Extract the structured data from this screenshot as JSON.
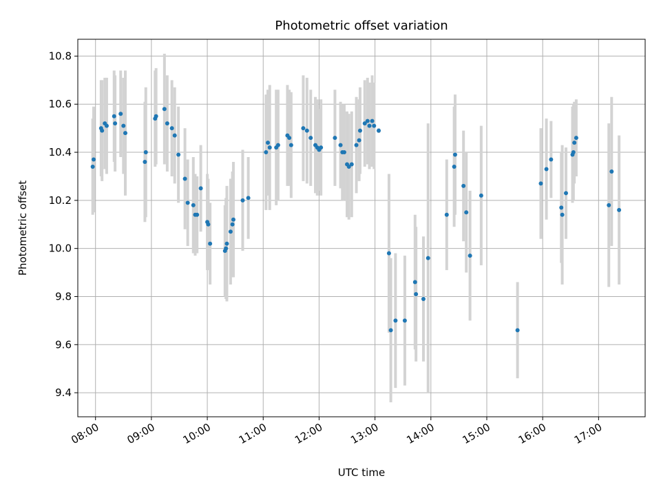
{
  "chart_data": {
    "type": "scatter",
    "title": "Photometric offset variation",
    "xlabel": "UTC time",
    "ylabel": "Photometric offset",
    "x_unit": "UTC time (HH:MM)",
    "xlim": [
      "07:41",
      "17:50"
    ],
    "ylim": [
      9.3,
      10.87
    ],
    "x_ticks": [
      "08:00",
      "09:00",
      "10:00",
      "11:00",
      "12:00",
      "13:00",
      "14:00",
      "15:00",
      "16:00",
      "17:00"
    ],
    "y_ticks": [
      9.4,
      9.6,
      9.8,
      10.0,
      10.2,
      10.4,
      10.6,
      10.8
    ],
    "grid": true,
    "colors": {
      "point": "#1f77b4",
      "errorbar": "#d3d3d3",
      "grid": "#b0b0b0"
    },
    "points": [
      {
        "x": "07:57",
        "y": 10.34,
        "err": 0.2
      },
      {
        "x": "07:58",
        "y": 10.37,
        "err": 0.22
      },
      {
        "x": "08:06",
        "y": 10.5,
        "err": 0.2
      },
      {
        "x": "08:07",
        "y": 10.49,
        "err": 0.21
      },
      {
        "x": "08:10",
        "y": 10.52,
        "err": 0.19
      },
      {
        "x": "08:12",
        "y": 10.51,
        "err": 0.2
      },
      {
        "x": "08:20",
        "y": 10.55,
        "err": 0.19
      },
      {
        "x": "08:21",
        "y": 10.52,
        "err": 0.2
      },
      {
        "x": "08:27",
        "y": 10.56,
        "err": 0.18
      },
      {
        "x": "08:30",
        "y": 10.51,
        "err": 0.2
      },
      {
        "x": "08:32",
        "y": 10.48,
        "err": 0.26
      },
      {
        "x": "08:53",
        "y": 10.36,
        "err": 0.25
      },
      {
        "x": "08:54",
        "y": 10.4,
        "err": 0.27
      },
      {
        "x": "09:04",
        "y": 10.54,
        "err": 0.2
      },
      {
        "x": "09:05",
        "y": 10.55,
        "err": 0.2
      },
      {
        "x": "09:14",
        "y": 10.58,
        "err": 0.23
      },
      {
        "x": "09:17",
        "y": 10.52,
        "err": 0.2
      },
      {
        "x": "09:22",
        "y": 10.5,
        "err": 0.2
      },
      {
        "x": "09:25",
        "y": 10.47,
        "err": 0.2
      },
      {
        "x": "09:29",
        "y": 10.39,
        "err": 0.2
      },
      {
        "x": "09:36",
        "y": 10.29,
        "err": 0.21
      },
      {
        "x": "09:39",
        "y": 10.19,
        "err": 0.18
      },
      {
        "x": "09:45",
        "y": 10.18,
        "err": 0.2
      },
      {
        "x": "09:47",
        "y": 10.14,
        "err": 0.17
      },
      {
        "x": "09:49",
        "y": 10.14,
        "err": 0.16
      },
      {
        "x": "09:53",
        "y": 10.25,
        "err": 0.18
      },
      {
        "x": "10:00",
        "y": 10.11,
        "err": 0.2
      },
      {
        "x": "10:01",
        "y": 10.1,
        "err": 0.19
      },
      {
        "x": "10:03",
        "y": 10.02,
        "err": 0.17
      },
      {
        "x": "10:19",
        "y": 9.99,
        "err": 0.19
      },
      {
        "x": "10:20",
        "y": 10.0,
        "err": 0.21
      },
      {
        "x": "10:21",
        "y": 10.02,
        "err": 0.24
      },
      {
        "x": "10:25",
        "y": 10.07,
        "err": 0.22
      },
      {
        "x": "10:27",
        "y": 10.1,
        "err": 0.22
      },
      {
        "x": "10:28",
        "y": 10.12,
        "err": 0.24
      },
      {
        "x": "10:38",
        "y": 10.2,
        "err": 0.21
      },
      {
        "x": "10:44",
        "y": 10.21,
        "err": 0.17
      },
      {
        "x": "11:03",
        "y": 10.4,
        "err": 0.24
      },
      {
        "x": "11:05",
        "y": 10.44,
        "err": 0.22
      },
      {
        "x": "11:07",
        "y": 10.42,
        "err": 0.26
      },
      {
        "x": "11:14",
        "y": 10.42,
        "err": 0.24
      },
      {
        "x": "11:16",
        "y": 10.43,
        "err": 0.23
      },
      {
        "x": "11:26",
        "y": 10.47,
        "err": 0.21
      },
      {
        "x": "11:28",
        "y": 10.46,
        "err": 0.2
      },
      {
        "x": "11:30",
        "y": 10.43,
        "err": 0.22
      },
      {
        "x": "11:43",
        "y": 10.5,
        "err": 0.22
      },
      {
        "x": "11:47",
        "y": 10.49,
        "err": 0.22
      },
      {
        "x": "11:51",
        "y": 10.46,
        "err": 0.2
      },
      {
        "x": "11:56",
        "y": 10.43,
        "err": 0.2
      },
      {
        "x": "11:58",
        "y": 10.42,
        "err": 0.2
      },
      {
        "x": "12:00",
        "y": 10.41,
        "err": 0.17
      },
      {
        "x": "12:02",
        "y": 10.42,
        "err": 0.2
      },
      {
        "x": "12:17",
        "y": 10.46,
        "err": 0.2
      },
      {
        "x": "12:23",
        "y": 10.43,
        "err": 0.18
      },
      {
        "x": "12:25",
        "y": 10.4,
        "err": 0.2
      },
      {
        "x": "12:27",
        "y": 10.4,
        "err": 0.2
      },
      {
        "x": "12:30",
        "y": 10.35,
        "err": 0.22
      },
      {
        "x": "12:32",
        "y": 10.34,
        "err": 0.22
      },
      {
        "x": "12:35",
        "y": 10.35,
        "err": 0.22
      },
      {
        "x": "12:40",
        "y": 10.43,
        "err": 0.2
      },
      {
        "x": "12:43",
        "y": 10.45,
        "err": 0.17
      },
      {
        "x": "12:44",
        "y": 10.49,
        "err": 0.18
      },
      {
        "x": "12:49",
        "y": 10.52,
        "err": 0.18
      },
      {
        "x": "12:52",
        "y": 10.53,
        "err": 0.18
      },
      {
        "x": "12:54",
        "y": 10.51,
        "err": 0.18
      },
      {
        "x": "12:57",
        "y": 10.53,
        "err": 0.19
      },
      {
        "x": "12:59",
        "y": 10.51,
        "err": 0.18
      },
      {
        "x": "13:04",
        "y": 10.49,
        "err": 0.01
      },
      {
        "x": "13:15",
        "y": 9.98,
        "err": 0.33
      },
      {
        "x": "13:17",
        "y": 9.66,
        "err": 0.3
      },
      {
        "x": "13:22",
        "y": 9.7,
        "err": 0.28
      },
      {
        "x": "13:32",
        "y": 9.7,
        "err": 0.27
      },
      {
        "x": "13:43",
        "y": 9.86,
        "err": 0.28
      },
      {
        "x": "13:44",
        "y": 9.81,
        "err": 0.28
      },
      {
        "x": "13:52",
        "y": 9.79,
        "err": 0.26
      },
      {
        "x": "13:57",
        "y": 9.96,
        "err": 0.56
      },
      {
        "x": "14:17",
        "y": 10.14,
        "err": 0.23
      },
      {
        "x": "14:25",
        "y": 10.34,
        "err": 0.25
      },
      {
        "x": "14:26",
        "y": 10.39,
        "err": 0.25
      },
      {
        "x": "14:35",
        "y": 10.26,
        "err": 0.23
      },
      {
        "x": "14:38",
        "y": 10.15,
        "err": 0.25
      },
      {
        "x": "14:42",
        "y": 9.97,
        "err": 0.27
      },
      {
        "x": "14:54",
        "y": 10.22,
        "err": 0.29
      },
      {
        "x": "15:33",
        "y": 9.66,
        "err": 0.2
      },
      {
        "x": "15:58",
        "y": 10.27,
        "err": 0.23
      },
      {
        "x": "16:04",
        "y": 10.33,
        "err": 0.21
      },
      {
        "x": "16:09",
        "y": 10.37,
        "err": 0.16
      },
      {
        "x": "16:20",
        "y": 10.17,
        "err": 0.23
      },
      {
        "x": "16:21",
        "y": 10.14,
        "err": 0.29
      },
      {
        "x": "16:25",
        "y": 10.23,
        "err": 0.19
      },
      {
        "x": "16:32",
        "y": 10.39,
        "err": 0.2
      },
      {
        "x": "16:33",
        "y": 10.4,
        "err": 0.2
      },
      {
        "x": "16:34",
        "y": 10.44,
        "err": 0.17
      },
      {
        "x": "16:36",
        "y": 10.46,
        "err": 0.16
      },
      {
        "x": "17:11",
        "y": 10.18,
        "err": 0.34
      },
      {
        "x": "17:14",
        "y": 10.32,
        "err": 0.31
      },
      {
        "x": "17:22",
        "y": 10.16,
        "err": 0.31
      }
    ]
  }
}
